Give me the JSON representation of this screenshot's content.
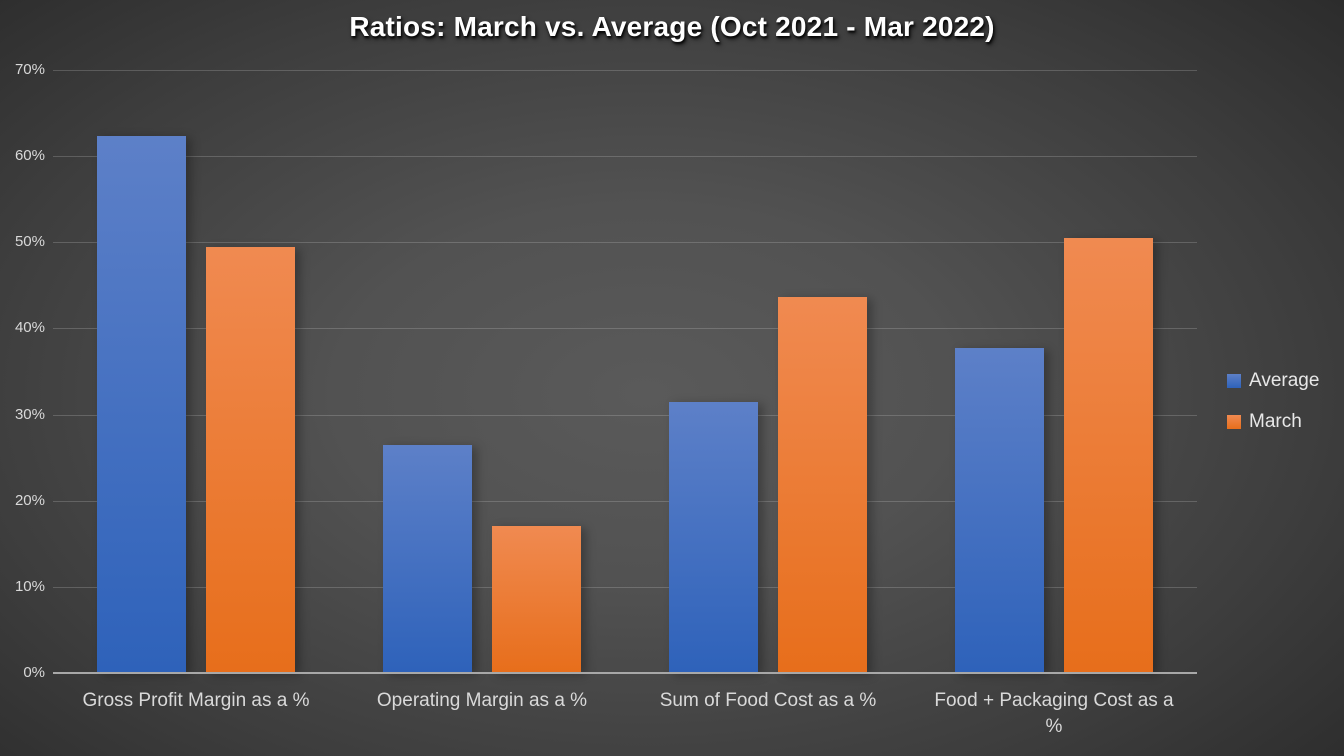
{
  "chart_data": {
    "type": "bar",
    "title": "Ratios: March vs. Average (Oct 2021 - Mar 2022)",
    "categories": [
      "Gross Profit Margin as a %",
      "Operating Margin as a %",
      "Sum of Food Cost as a %",
      "Food + Packaging Cost as a %"
    ],
    "series": [
      {
        "name": "Average",
        "color": "#4472C4",
        "gradient_top": "#5d80c8",
        "gradient_bottom": "#2e62ba",
        "values": [
          62.3,
          26.5,
          31.5,
          37.7
        ]
      },
      {
        "name": "March",
        "color": "#ED7D31",
        "gradient_top": "#f08a51",
        "gradient_bottom": "#e76e1b",
        "values": [
          49.5,
          17.1,
          43.6,
          50.5
        ]
      }
    ],
    "y_axis": {
      "min": 0,
      "max": 70,
      "tick_step": 10,
      "tick_labels": [
        "0%",
        "10%",
        "20%",
        "30%",
        "40%",
        "50%",
        "60%",
        "70%"
      ]
    },
    "grid": true,
    "legend": {
      "position": "right",
      "entries": [
        "Average",
        "March"
      ]
    },
    "colors": {
      "background_center": "#595959",
      "background_edge": "#262626",
      "axis_text": "#d9d9d9",
      "axis_line": "#a8a8a8",
      "title_text": "#ffffff"
    }
  }
}
